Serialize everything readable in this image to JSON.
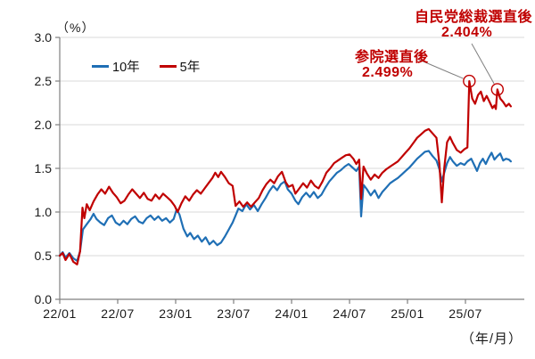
{
  "colors": {
    "grid": "#d9d9d9",
    "axis": "#7f7f7f",
    "tick_text": "#1a1a1a",
    "annotation_red": "#c00000",
    "series_blue": "#1f6fb5",
    "series_red": "#c00000",
    "background": "#ffffff"
  },
  "chart_data": {
    "type": "line",
    "title": "",
    "unit_label": "（%）",
    "xaxis_label": "（年/月）",
    "ylabel": "",
    "xlabel": "年/月",
    "ylim": [
      0.0,
      3.0
    ],
    "grid": "horizontal",
    "legend_position": "top-left-inside",
    "y_ticks": [
      "0.0",
      "0.5",
      "1.0",
      "1.5",
      "2.0",
      "2.5",
      "3.0"
    ],
    "x_ticks": [
      {
        "label": "22/01",
        "month": 0
      },
      {
        "label": "22/07",
        "month": 6
      },
      {
        "label": "23/01",
        "month": 12
      },
      {
        "label": "23/07",
        "month": 18
      },
      {
        "label": "24/01",
        "month": 24
      },
      {
        "label": "24/07",
        "month": 30
      },
      {
        "label": "25/01",
        "month": 36
      },
      {
        "label": "25/07",
        "month": 42
      }
    ],
    "series": [
      {
        "name": "10年",
        "color": "#1f6fb5",
        "points": [
          [
            0,
            0.5
          ],
          [
            0.3,
            0.54
          ],
          [
            0.6,
            0.48
          ],
          [
            1.0,
            0.53
          ],
          [
            1.4,
            0.47
          ],
          [
            1.8,
            0.44
          ],
          [
            2.1,
            0.55
          ],
          [
            2.4,
            0.8
          ],
          [
            2.8,
            0.86
          ],
          [
            3.2,
            0.92
          ],
          [
            3.5,
            0.98
          ],
          [
            3.8,
            0.92
          ],
          [
            4.2,
            0.88
          ],
          [
            4.6,
            0.85
          ],
          [
            5.0,
            0.93
          ],
          [
            5.4,
            0.96
          ],
          [
            5.8,
            0.88
          ],
          [
            6.2,
            0.85
          ],
          [
            6.6,
            0.9
          ],
          [
            7.0,
            0.86
          ],
          [
            7.4,
            0.92
          ],
          [
            7.8,
            0.95
          ],
          [
            8.2,
            0.89
          ],
          [
            8.6,
            0.87
          ],
          [
            9.0,
            0.93
          ],
          [
            9.4,
            0.96
          ],
          [
            9.8,
            0.91
          ],
          [
            10.2,
            0.95
          ],
          [
            10.6,
            0.9
          ],
          [
            11.0,
            0.93
          ],
          [
            11.4,
            0.88
          ],
          [
            11.8,
            0.92
          ],
          [
            12.1,
            1.03
          ],
          [
            12.4,
            0.97
          ],
          [
            12.8,
            0.81
          ],
          [
            13.2,
            0.72
          ],
          [
            13.5,
            0.76
          ],
          [
            13.9,
            0.69
          ],
          [
            14.3,
            0.73
          ],
          [
            14.7,
            0.66
          ],
          [
            15.1,
            0.71
          ],
          [
            15.5,
            0.63
          ],
          [
            15.9,
            0.67
          ],
          [
            16.3,
            0.62
          ],
          [
            16.7,
            0.65
          ],
          [
            17.1,
            0.72
          ],
          [
            17.5,
            0.8
          ],
          [
            17.9,
            0.88
          ],
          [
            18.2,
            0.96
          ],
          [
            18.5,
            1.04
          ],
          [
            18.9,
            1.01
          ],
          [
            19.3,
            1.09
          ],
          [
            19.7,
            1.03
          ],
          [
            20.1,
            1.08
          ],
          [
            20.5,
            1.01
          ],
          [
            20.9,
            1.09
          ],
          [
            21.3,
            1.16
          ],
          [
            21.7,
            1.24
          ],
          [
            22.1,
            1.3
          ],
          [
            22.5,
            1.25
          ],
          [
            22.9,
            1.32
          ],
          [
            23.3,
            1.35
          ],
          [
            23.6,
            1.26
          ],
          [
            24.0,
            1.21
          ],
          [
            24.4,
            1.13
          ],
          [
            24.7,
            1.09
          ],
          [
            25.1,
            1.17
          ],
          [
            25.5,
            1.22
          ],
          [
            25.9,
            1.17
          ],
          [
            26.3,
            1.23
          ],
          [
            26.7,
            1.16
          ],
          [
            27.1,
            1.2
          ],
          [
            27.5,
            1.28
          ],
          [
            27.9,
            1.35
          ],
          [
            28.3,
            1.4
          ],
          [
            28.7,
            1.45
          ],
          [
            29.1,
            1.48
          ],
          [
            29.5,
            1.52
          ],
          [
            29.9,
            1.55
          ],
          [
            30.3,
            1.51
          ],
          [
            30.7,
            1.47
          ],
          [
            31.0,
            1.52
          ],
          [
            31.2,
            0.95
          ],
          [
            31.45,
            1.31
          ],
          [
            31.8,
            1.26
          ],
          [
            32.2,
            1.19
          ],
          [
            32.6,
            1.25
          ],
          [
            33.0,
            1.16
          ],
          [
            33.4,
            1.23
          ],
          [
            33.8,
            1.28
          ],
          [
            34.2,
            1.33
          ],
          [
            34.6,
            1.36
          ],
          [
            35.0,
            1.39
          ],
          [
            35.4,
            1.43
          ],
          [
            35.8,
            1.47
          ],
          [
            36.2,
            1.51
          ],
          [
            36.6,
            1.56
          ],
          [
            37.0,
            1.61
          ],
          [
            37.4,
            1.65
          ],
          [
            37.8,
            1.69
          ],
          [
            38.2,
            1.7
          ],
          [
            38.6,
            1.64
          ],
          [
            39.0,
            1.59
          ],
          [
            39.3,
            1.49
          ],
          [
            39.55,
            1.35
          ],
          [
            39.8,
            1.45
          ],
          [
            40.1,
            1.56
          ],
          [
            40.4,
            1.63
          ],
          [
            40.7,
            1.58
          ],
          [
            41.1,
            1.53
          ],
          [
            41.5,
            1.56
          ],
          [
            41.9,
            1.54
          ],
          [
            42.2,
            1.58
          ],
          [
            42.6,
            1.61
          ],
          [
            42.9,
            1.54
          ],
          [
            43.2,
            1.47
          ],
          [
            43.5,
            1.56
          ],
          [
            43.8,
            1.61
          ],
          [
            44.1,
            1.55
          ],
          [
            44.4,
            1.62
          ],
          [
            44.7,
            1.68
          ],
          [
            45.0,
            1.6
          ],
          [
            45.3,
            1.64
          ],
          [
            45.6,
            1.67
          ],
          [
            45.9,
            1.59
          ],
          [
            46.2,
            1.61
          ],
          [
            46.5,
            1.6
          ],
          [
            46.7,
            1.58
          ]
        ]
      },
      {
        "name": "5年",
        "color": "#c00000",
        "points": [
          [
            0,
            0.5
          ],
          [
            0.3,
            0.53
          ],
          [
            0.6,
            0.45
          ],
          [
            1.0,
            0.52
          ],
          [
            1.4,
            0.43
          ],
          [
            1.8,
            0.4
          ],
          [
            2.1,
            0.55
          ],
          [
            2.35,
            1.05
          ],
          [
            2.55,
            0.93
          ],
          [
            2.8,
            1.09
          ],
          [
            3.1,
            1.02
          ],
          [
            3.5,
            1.12
          ],
          [
            3.9,
            1.2
          ],
          [
            4.3,
            1.26
          ],
          [
            4.7,
            1.21
          ],
          [
            5.1,
            1.29
          ],
          [
            5.5,
            1.22
          ],
          [
            5.9,
            1.17
          ],
          [
            6.3,
            1.1
          ],
          [
            6.7,
            1.13
          ],
          [
            7.1,
            1.2
          ],
          [
            7.5,
            1.26
          ],
          [
            7.9,
            1.21
          ],
          [
            8.3,
            1.16
          ],
          [
            8.7,
            1.22
          ],
          [
            9.1,
            1.15
          ],
          [
            9.5,
            1.13
          ],
          [
            9.9,
            1.2
          ],
          [
            10.3,
            1.15
          ],
          [
            10.7,
            1.21
          ],
          [
            11.1,
            1.17
          ],
          [
            11.5,
            1.13
          ],
          [
            11.9,
            1.07
          ],
          [
            12.2,
            1.0
          ],
          [
            12.6,
            1.1
          ],
          [
            13.0,
            1.18
          ],
          [
            13.4,
            1.13
          ],
          [
            13.8,
            1.2
          ],
          [
            14.2,
            1.25
          ],
          [
            14.6,
            1.21
          ],
          [
            15.0,
            1.27
          ],
          [
            15.4,
            1.33
          ],
          [
            15.8,
            1.39
          ],
          [
            16.1,
            1.45
          ],
          [
            16.4,
            1.4
          ],
          [
            16.7,
            1.46
          ],
          [
            17.1,
            1.4
          ],
          [
            17.5,
            1.33
          ],
          [
            17.9,
            1.3
          ],
          [
            18.2,
            1.07
          ],
          [
            18.6,
            1.12
          ],
          [
            19.0,
            1.06
          ],
          [
            19.4,
            1.11
          ],
          [
            19.8,
            1.06
          ],
          [
            20.2,
            1.11
          ],
          [
            20.6,
            1.16
          ],
          [
            21.0,
            1.25
          ],
          [
            21.4,
            1.32
          ],
          [
            21.8,
            1.37
          ],
          [
            22.2,
            1.33
          ],
          [
            22.6,
            1.41
          ],
          [
            23.0,
            1.46
          ],
          [
            23.4,
            1.34
          ],
          [
            23.7,
            1.29
          ],
          [
            24.1,
            1.31
          ],
          [
            24.4,
            1.21
          ],
          [
            24.8,
            1.27
          ],
          [
            25.2,
            1.33
          ],
          [
            25.6,
            1.28
          ],
          [
            26.0,
            1.36
          ],
          [
            26.4,
            1.3
          ],
          [
            26.8,
            1.27
          ],
          [
            27.2,
            1.35
          ],
          [
            27.6,
            1.45
          ],
          [
            28.0,
            1.5
          ],
          [
            28.4,
            1.56
          ],
          [
            28.8,
            1.59
          ],
          [
            29.2,
            1.62
          ],
          [
            29.6,
            1.65
          ],
          [
            30.0,
            1.66
          ],
          [
            30.4,
            1.61
          ],
          [
            30.7,
            1.55
          ],
          [
            31.0,
            1.6
          ],
          [
            31.2,
            1.15
          ],
          [
            31.45,
            1.52
          ],
          [
            31.8,
            1.44
          ],
          [
            32.2,
            1.37
          ],
          [
            32.6,
            1.43
          ],
          [
            33.0,
            1.39
          ],
          [
            33.4,
            1.45
          ],
          [
            33.8,
            1.49
          ],
          [
            34.2,
            1.52
          ],
          [
            34.6,
            1.55
          ],
          [
            35.0,
            1.58
          ],
          [
            35.4,
            1.63
          ],
          [
            35.8,
            1.68
          ],
          [
            36.2,
            1.73
          ],
          [
            36.6,
            1.79
          ],
          [
            37.0,
            1.85
          ],
          [
            37.4,
            1.89
          ],
          [
            37.8,
            1.93
          ],
          [
            38.2,
            1.95
          ],
          [
            38.6,
            1.9
          ],
          [
            39.0,
            1.85
          ],
          [
            39.3,
            1.55
          ],
          [
            39.55,
            1.11
          ],
          [
            39.8,
            1.5
          ],
          [
            40.1,
            1.8
          ],
          [
            40.4,
            1.86
          ],
          [
            40.7,
            1.79
          ],
          [
            41.1,
            1.71
          ],
          [
            41.5,
            1.68
          ],
          [
            41.9,
            1.72
          ],
          [
            42.2,
            1.74
          ],
          [
            42.4,
            2.499
          ],
          [
            42.7,
            2.3
          ],
          [
            43.0,
            2.24
          ],
          [
            43.3,
            2.34
          ],
          [
            43.6,
            2.38
          ],
          [
            43.9,
            2.27
          ],
          [
            44.2,
            2.33
          ],
          [
            44.5,
            2.26
          ],
          [
            44.8,
            2.19
          ],
          [
            45.0,
            2.22
          ],
          [
            45.15,
            2.18
          ],
          [
            45.3,
            2.404
          ],
          [
            45.6,
            2.3
          ],
          [
            45.9,
            2.26
          ],
          [
            46.2,
            2.21
          ],
          [
            46.5,
            2.24
          ],
          [
            46.7,
            2.21
          ]
        ]
      }
    ],
    "annotations": [
      {
        "label": "参院選直後",
        "value_label": "2.499%",
        "month": 42.4,
        "value": 2.499
      },
      {
        "label": "自民党総裁選直後",
        "value_label": "2.404%",
        "month": 45.3,
        "value": 2.404
      }
    ]
  }
}
